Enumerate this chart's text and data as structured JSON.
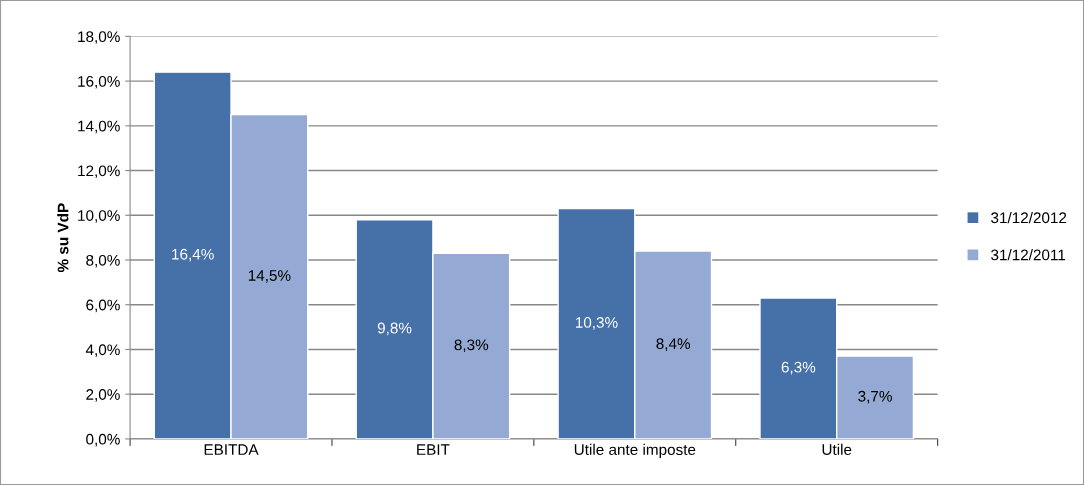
{
  "chart_data": {
    "type": "bar",
    "ylabel": "% su VdP",
    "categories": [
      "EBITDA",
      "EBIT",
      "Utile ante imposte",
      "Utile"
    ],
    "series": [
      {
        "name": "31/12/2012",
        "color": "#4571a8",
        "values": [
          16.4,
          9.8,
          10.3,
          6.3
        ],
        "value_labels": [
          "16,4%",
          "9,8%",
          "10,3%",
          "6,3%"
        ]
      },
      {
        "name": "31/12/2011",
        "color": "#94aad4",
        "values": [
          14.5,
          8.3,
          8.4,
          3.7
        ],
        "value_labels": [
          "14,5%",
          "8,3%",
          "8,4%",
          "3,7%"
        ]
      }
    ],
    "ylim": [
      0,
      18
    ],
    "yticks": [
      {
        "value": 0,
        "label": "0,0%"
      },
      {
        "value": 2,
        "label": "2,0%"
      },
      {
        "value": 4,
        "label": "4,0%"
      },
      {
        "value": 6,
        "label": "6,0%"
      },
      {
        "value": 8,
        "label": "8,0%"
      },
      {
        "value": 10,
        "label": "10,0%"
      },
      {
        "value": 12,
        "label": "12,0%"
      },
      {
        "value": 14,
        "label": "14,0%"
      },
      {
        "value": 16,
        "label": "16,0%"
      },
      {
        "value": 18,
        "label": "18,0%"
      }
    ],
    "grid": "y",
    "legend": "right"
  }
}
